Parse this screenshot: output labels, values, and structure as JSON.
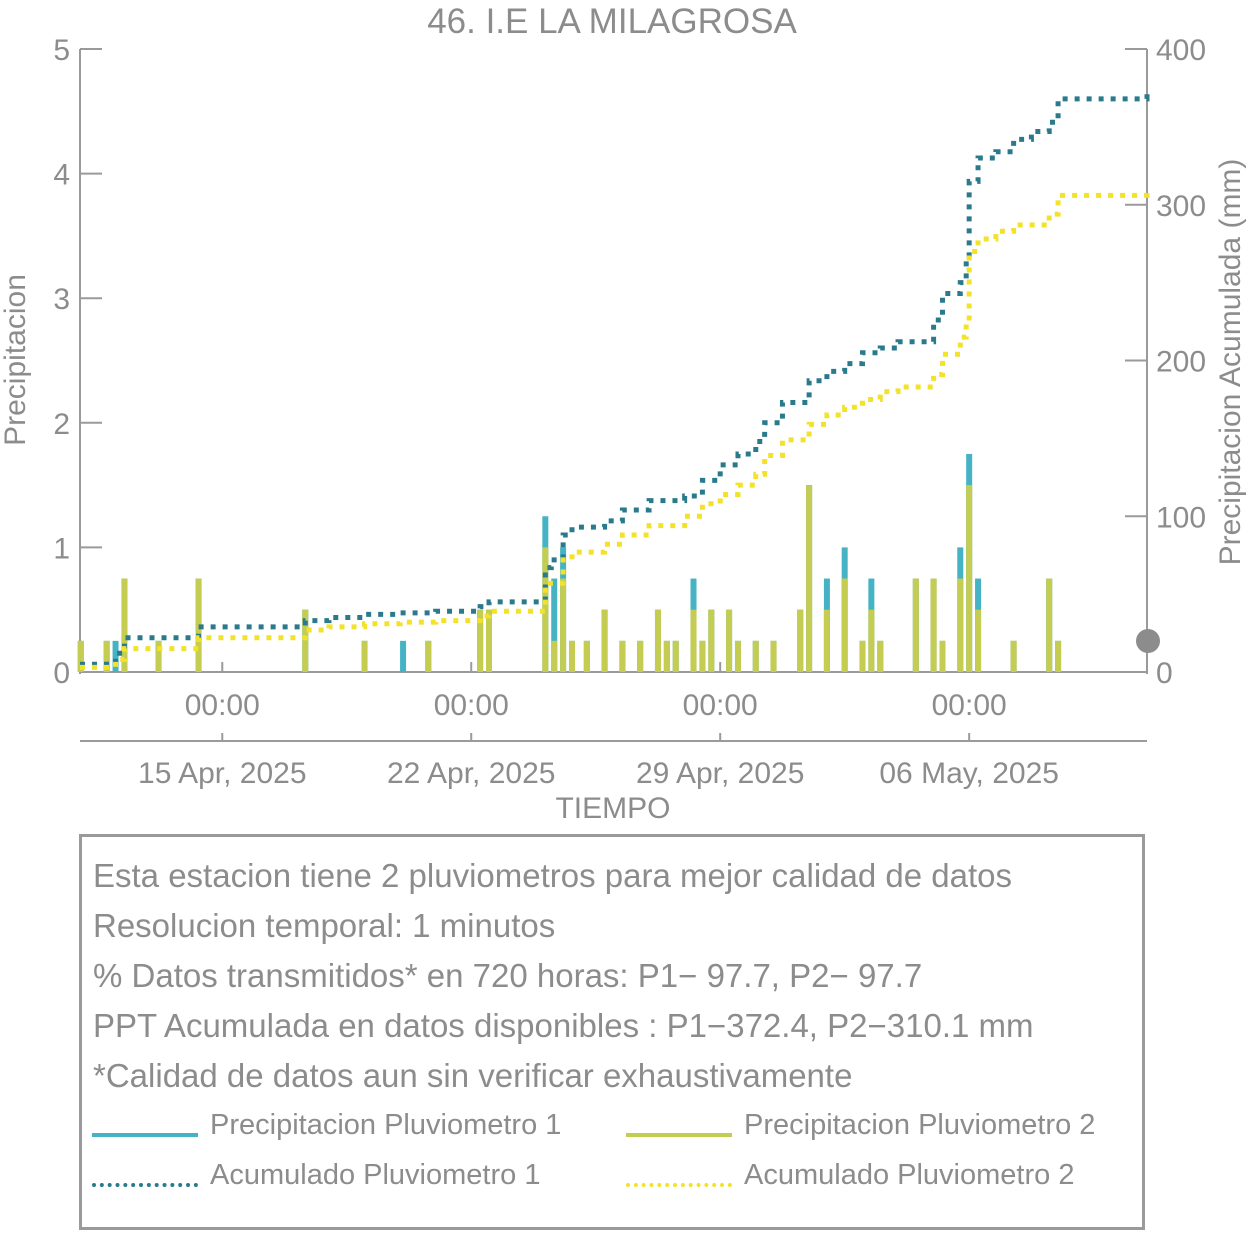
{
  "chart_data": {
    "type": "bar+line",
    "title": "46. I.E LA MILAGROSA",
    "xlabel": "TIEMPO",
    "ylabel_left": "Precipitacion",
    "ylabel_right": "Precipitacion Acumulada (mm)",
    "ylim_left": [
      0,
      5
    ],
    "ylim_right": [
      0,
      400
    ],
    "yticks_left": [
      0,
      1,
      2,
      3,
      4,
      5
    ],
    "yticks_right": [
      0,
      100,
      200,
      300,
      400
    ],
    "x_range": [
      "2025-04-11 00:00",
      "2025-05-11 00:00"
    ],
    "x_ticks": [
      {
        "date": "2025-04-15 00:00",
        "time_label": "00:00",
        "date_label": "15 Apr, 2025"
      },
      {
        "date": "2025-04-22 00:00",
        "time_label": "00:00",
        "date_label": "22 Apr, 2025"
      },
      {
        "date": "2025-04-29 00:00",
        "time_label": "00:00",
        "date_label": "29 Apr, 2025"
      },
      {
        "date": "2025-05-06 00:00",
        "time_label": "00:00",
        "date_label": "06 May, 2025"
      }
    ],
    "colors": {
      "p1": "#45b3c4",
      "p2": "#c4cc52",
      "acum1": "#2a7a8c",
      "acum2": "#f2e22a",
      "axis": "#9a9a9a",
      "marker": "#8c8c8c"
    },
    "series": [
      {
        "name": "Precipitacion Pluviometro 1",
        "kind": "bar",
        "axis": "left",
        "points": [
          [
            "2025-04-11 00:30",
            0.25
          ],
          [
            "2025-04-11 18:00",
            0.25
          ],
          [
            "2025-04-12 00:00",
            0.25
          ],
          [
            "2025-04-12 06:00",
            0.75
          ],
          [
            "2025-04-13 05:00",
            0.25
          ],
          [
            "2025-04-14 08:00",
            0.75
          ],
          [
            "2025-04-17 08:00",
            0.5
          ],
          [
            "2025-04-19 00:00",
            0.25
          ],
          [
            "2025-04-20 02:00",
            0.25
          ],
          [
            "2025-04-20 19:00",
            0.25
          ],
          [
            "2025-04-22 06:00",
            0.5
          ],
          [
            "2025-04-22 12:00",
            0.5
          ],
          [
            "2025-04-24 02:00",
            1.25
          ],
          [
            "2025-04-24 08:00",
            0.75
          ],
          [
            "2025-04-24 14:00",
            1.0
          ],
          [
            "2025-04-24 20:00",
            0.25
          ],
          [
            "2025-04-25 06:00",
            0.25
          ],
          [
            "2025-04-25 18:00",
            0.5
          ],
          [
            "2025-04-26 06:00",
            0.25
          ],
          [
            "2025-04-26 18:00",
            0.25
          ],
          [
            "2025-04-27 06:00",
            0.5
          ],
          [
            "2025-04-27 12:00",
            0.25
          ],
          [
            "2025-04-27 18:00",
            0.25
          ],
          [
            "2025-04-28 06:00",
            0.75
          ],
          [
            "2025-04-28 12:00",
            0.25
          ],
          [
            "2025-04-28 18:00",
            0.5
          ],
          [
            "2025-04-29 06:00",
            0.5
          ],
          [
            "2025-04-29 12:00",
            0.25
          ],
          [
            "2025-04-30 00:00",
            0.25
          ],
          [
            "2025-04-30 12:00",
            0.25
          ],
          [
            "2025-05-01 06:00",
            0.5
          ],
          [
            "2025-05-01 12:00",
            1.5
          ],
          [
            "2025-05-02 00:00",
            0.75
          ],
          [
            "2025-05-02 12:00",
            1.0
          ],
          [
            "2025-05-03 00:00",
            0.25
          ],
          [
            "2025-05-03 06:00",
            0.75
          ],
          [
            "2025-05-03 12:00",
            0.25
          ],
          [
            "2025-05-04 12:00",
            0.75
          ],
          [
            "2025-05-05 00:00",
            0.75
          ],
          [
            "2025-05-05 06:00",
            0.25
          ],
          [
            "2025-05-05 18:00",
            1.0
          ],
          [
            "2025-05-06 00:00",
            1.75
          ],
          [
            "2025-05-06 06:00",
            0.75
          ],
          [
            "2025-05-07 06:00",
            0.25
          ],
          [
            "2025-05-08 06:00",
            0.75
          ],
          [
            "2025-05-08 12:00",
            0.25
          ]
        ]
      },
      {
        "name": "Precipitacion Pluviometro 2",
        "kind": "bar",
        "axis": "left",
        "points": [
          [
            "2025-04-11 00:30",
            0.25
          ],
          [
            "2025-04-11 18:00",
            0.25
          ],
          [
            "2025-04-12 06:00",
            0.75
          ],
          [
            "2025-04-13 05:00",
            0.25
          ],
          [
            "2025-04-14 08:00",
            0.75
          ],
          [
            "2025-04-17 08:00",
            0.5
          ],
          [
            "2025-04-19 00:00",
            0.25
          ],
          [
            "2025-04-20 19:00",
            0.25
          ],
          [
            "2025-04-22 06:00",
            0.5
          ],
          [
            "2025-04-22 12:00",
            0.5
          ],
          [
            "2025-04-24 02:00",
            1.0
          ],
          [
            "2025-04-24 08:00",
            0.25
          ],
          [
            "2025-04-24 14:00",
            0.75
          ],
          [
            "2025-04-24 20:00",
            0.25
          ],
          [
            "2025-04-25 06:00",
            0.25
          ],
          [
            "2025-04-25 18:00",
            0.5
          ],
          [
            "2025-04-26 06:00",
            0.25
          ],
          [
            "2025-04-26 18:00",
            0.25
          ],
          [
            "2025-04-27 06:00",
            0.5
          ],
          [
            "2025-04-27 12:00",
            0.25
          ],
          [
            "2025-04-27 18:00",
            0.25
          ],
          [
            "2025-04-28 06:00",
            0.5
          ],
          [
            "2025-04-28 12:00",
            0.25
          ],
          [
            "2025-04-28 18:00",
            0.5
          ],
          [
            "2025-04-29 06:00",
            0.5
          ],
          [
            "2025-04-29 12:00",
            0.25
          ],
          [
            "2025-04-30 00:00",
            0.25
          ],
          [
            "2025-04-30 12:00",
            0.25
          ],
          [
            "2025-05-01 06:00",
            0.5
          ],
          [
            "2025-05-01 12:00",
            1.5
          ],
          [
            "2025-05-02 00:00",
            0.5
          ],
          [
            "2025-05-02 12:00",
            0.75
          ],
          [
            "2025-05-03 00:00",
            0.25
          ],
          [
            "2025-05-03 06:00",
            0.5
          ],
          [
            "2025-05-03 12:00",
            0.25
          ],
          [
            "2025-05-04 12:00",
            0.75
          ],
          [
            "2025-05-05 00:00",
            0.75
          ],
          [
            "2025-05-05 06:00",
            0.25
          ],
          [
            "2025-05-05 18:00",
            0.75
          ],
          [
            "2025-05-06 00:00",
            1.5
          ],
          [
            "2025-05-06 06:00",
            0.5
          ],
          [
            "2025-05-07 06:00",
            0.25
          ],
          [
            "2025-05-08 06:00",
            0.75
          ],
          [
            "2025-05-08 12:00",
            0.25
          ]
        ]
      },
      {
        "name": "Acumulado Pluviometro 1",
        "kind": "step-dotted",
        "axis": "right",
        "points": [
          [
            "2025-04-11 00:00",
            5
          ],
          [
            "2025-04-12 00:00",
            12
          ],
          [
            "2025-04-12 06:00",
            22
          ],
          [
            "2025-04-14 08:00",
            29
          ],
          [
            "2025-04-17 08:00",
            33
          ],
          [
            "2025-04-18 00:00",
            35
          ],
          [
            "2025-04-19 00:00",
            37
          ],
          [
            "2025-04-20 00:00",
            38
          ],
          [
            "2025-04-21 00:00",
            39
          ],
          [
            "2025-04-22 06:00",
            42
          ],
          [
            "2025-04-22 12:00",
            45
          ],
          [
            "2025-04-24 02:00",
            67
          ],
          [
            "2025-04-24 06:00",
            72
          ],
          [
            "2025-04-24 14:00",
            88
          ],
          [
            "2025-04-24 20:00",
            93
          ],
          [
            "2025-04-25 18:00",
            97
          ],
          [
            "2025-04-26 06:00",
            104
          ],
          [
            "2025-04-27 00:00",
            110
          ],
          [
            "2025-04-28 00:00",
            113
          ],
          [
            "2025-04-28 12:00",
            123
          ],
          [
            "2025-04-29 00:00",
            133
          ],
          [
            "2025-04-29 12:00",
            140
          ],
          [
            "2025-04-30 00:00",
            148
          ],
          [
            "2025-04-30 06:00",
            160
          ],
          [
            "2025-04-30 18:00",
            173
          ],
          [
            "2025-05-01 12:00",
            187
          ],
          [
            "2025-05-02 00:00",
            193
          ],
          [
            "2025-05-02 12:00",
            198
          ],
          [
            "2025-05-03 00:00",
            205
          ],
          [
            "2025-05-03 12:00",
            208
          ],
          [
            "2025-05-04 00:00",
            212
          ],
          [
            "2025-05-05 00:00",
            226
          ],
          [
            "2025-05-05 06:00",
            243
          ],
          [
            "2025-05-05 18:00",
            250
          ],
          [
            "2025-05-05 22:00",
            265
          ],
          [
            "2025-05-06 00:00",
            315
          ],
          [
            "2025-05-06 06:00",
            330
          ],
          [
            "2025-05-06 18:00",
            334
          ],
          [
            "2025-05-07 06:00",
            342
          ],
          [
            "2025-05-07 18:00",
            347
          ],
          [
            "2025-05-08 06:00",
            353
          ],
          [
            "2025-05-08 12:00",
            368
          ],
          [
            "2025-05-11 00:00",
            372.4
          ]
        ]
      },
      {
        "name": "Acumulado Pluviometro 2",
        "kind": "step-dotted",
        "axis": "right",
        "points": [
          [
            "2025-04-11 00:00",
            3
          ],
          [
            "2025-04-12 00:00",
            8
          ],
          [
            "2025-04-12 06:00",
            15
          ],
          [
            "2025-04-14 08:00",
            22
          ],
          [
            "2025-04-17 08:00",
            27
          ],
          [
            "2025-04-18 00:00",
            29
          ],
          [
            "2025-04-19 00:00",
            31
          ],
          [
            "2025-04-20 00:00",
            32
          ],
          [
            "2025-04-21 00:00",
            33
          ],
          [
            "2025-04-22 06:00",
            36
          ],
          [
            "2025-04-22 12:00",
            39
          ],
          [
            "2025-04-24 02:00",
            57
          ],
          [
            "2025-04-24 14:00",
            72
          ],
          [
            "2025-04-24 20:00",
            77
          ],
          [
            "2025-04-25 18:00",
            82
          ],
          [
            "2025-04-26 06:00",
            88
          ],
          [
            "2025-04-27 00:00",
            94
          ],
          [
            "2025-04-28 00:00",
            100
          ],
          [
            "2025-04-28 12:00",
            108
          ],
          [
            "2025-04-29 00:00",
            114
          ],
          [
            "2025-04-29 12:00",
            120
          ],
          [
            "2025-04-30 00:00",
            127
          ],
          [
            "2025-04-30 06:00",
            139
          ],
          [
            "2025-04-30 18:00",
            149
          ],
          [
            "2025-05-01 12:00",
            159
          ],
          [
            "2025-05-02 00:00",
            165
          ],
          [
            "2025-05-02 12:00",
            170
          ],
          [
            "2025-05-03 00:00",
            175
          ],
          [
            "2025-05-03 12:00",
            180
          ],
          [
            "2025-05-04 00:00",
            183
          ],
          [
            "2025-05-05 00:00",
            191
          ],
          [
            "2025-05-05 06:00",
            204
          ],
          [
            "2025-05-05 18:00",
            215
          ],
          [
            "2025-05-05 22:00",
            225
          ],
          [
            "2025-05-06 00:00",
            270
          ],
          [
            "2025-05-06 06:00",
            278
          ],
          [
            "2025-05-06 18:00",
            283
          ],
          [
            "2025-05-07 06:00",
            287
          ],
          [
            "2025-05-08 06:00",
            294
          ],
          [
            "2025-05-08 12:00",
            306
          ],
          [
            "2025-05-11 00:00",
            310.1
          ]
        ]
      }
    ]
  },
  "info": {
    "line1": "Esta estacion tiene 2 pluviometros para mejor calidad de datos",
    "line2": "Resolucion temporal: 1 minutos",
    "line3": "% Datos transmitidos* en 720 horas: P1− 97.7, P2− 97.7",
    "line4": "PPT Acumulada en datos disponibles : P1−372.4, P2−310.1 mm",
    "line5": "*Calidad de datos aun sin verificar exhaustivamente"
  },
  "legend": {
    "p1": "Precipitacion Pluviometro 1",
    "p2": "Precipitacion Pluviometro 2",
    "acum1": "Acumulado Pluviometro 1",
    "acum2": "Acumulado Pluviometro 2"
  }
}
